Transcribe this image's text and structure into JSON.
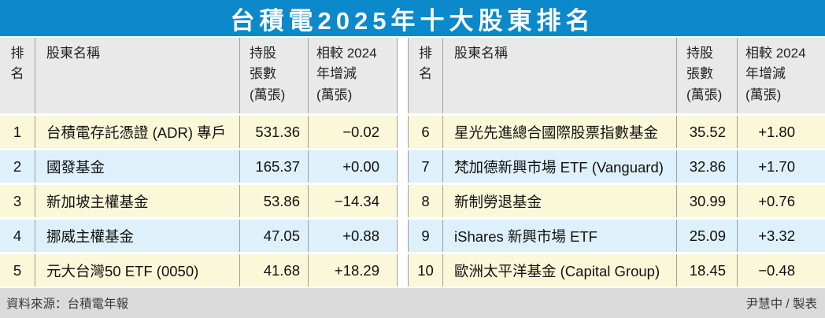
{
  "title": "台積電2025年十大股東排名",
  "header": {
    "rank": [
      "排",
      "名"
    ],
    "name": "股東名稱",
    "holding": [
      "持股",
      "張數",
      "(萬張)"
    ],
    "change": [
      "相較 2024",
      "年增減",
      "(萬張)"
    ]
  },
  "left_rows": [
    {
      "rank": "1",
      "name": "台積電存託憑證 (ADR) 專戶",
      "holding": "531.36",
      "change": "−0.02"
    },
    {
      "rank": "2",
      "name": "國發基金",
      "holding": "165.37",
      "change": "+0.00"
    },
    {
      "rank": "3",
      "name": "新加坡主權基金",
      "holding": "53.86",
      "change": "−14.34"
    },
    {
      "rank": "4",
      "name": "挪威主權基金",
      "holding": "47.05",
      "change": "+0.88"
    },
    {
      "rank": "5",
      "name": "元大台灣50 ETF (0050)",
      "holding": "41.68",
      "change": "+18.29"
    }
  ],
  "right_rows": [
    {
      "rank": "6",
      "name": "星光先進總合國際股票指數基金",
      "holding": "35.52",
      "change": "+1.80"
    },
    {
      "rank": "7",
      "name": "梵加德新興市場 ETF (Vanguard)",
      "holding": "32.86",
      "change": "+1.70"
    },
    {
      "rank": "8",
      "name": "新制勞退基金",
      "holding": "30.99",
      "change": "+0.76"
    },
    {
      "rank": "9",
      "name": "iShares 新興市場 ETF",
      "holding": "25.09",
      "change": "+3.32"
    },
    {
      "rank": "10",
      "name": "歐洲太平洋基金 (Capital Group)",
      "holding": "18.45",
      "change": "−0.48"
    }
  ],
  "footer": {
    "source": "資料來源：台積電年報",
    "credit": "尹慧中 / 製表"
  },
  "colors": {
    "title_bg": "#0b89ca",
    "row_yellow": "#faf8d8",
    "row_blue": "#def0f9",
    "header_bg": "#e9e9e9",
    "footer_bg": "#dbdbdb",
    "border": "#9e9e9e"
  },
  "chart_data": {
    "type": "table",
    "title": "台積電2025年十大股東排名",
    "columns": [
      "排名",
      "股東名稱",
      "持股張數(萬張)",
      "相較2024年增減(萬張)"
    ],
    "rows": [
      [
        1,
        "台積電存託憑證 (ADR) 專戶",
        531.36,
        -0.02
      ],
      [
        2,
        "國發基金",
        165.37,
        0.0
      ],
      [
        3,
        "新加坡主權基金",
        53.86,
        -14.34
      ],
      [
        4,
        "挪威主權基金",
        47.05,
        0.88
      ],
      [
        5,
        "元大台灣50 ETF (0050)",
        41.68,
        18.29
      ],
      [
        6,
        "星光先進總合國際股票指數基金",
        35.52,
        1.8
      ],
      [
        7,
        "梵加德新興市場 ETF (Vanguard)",
        32.86,
        1.7
      ],
      [
        8,
        "新制勞退基金",
        30.99,
        0.76
      ],
      [
        9,
        "iShares 新興市場 ETF",
        25.09,
        3.32
      ],
      [
        10,
        "歐洲太平洋基金 (Capital Group)",
        18.45,
        -0.48
      ]
    ],
    "source": "資料來源：台積電年報",
    "credit": "尹慧中 / 製表",
    "layout": {
      "split": "rows 1-5 left table, rows 6-10 right table",
      "row_stripes": [
        "yellow",
        "light-blue"
      ]
    }
  }
}
